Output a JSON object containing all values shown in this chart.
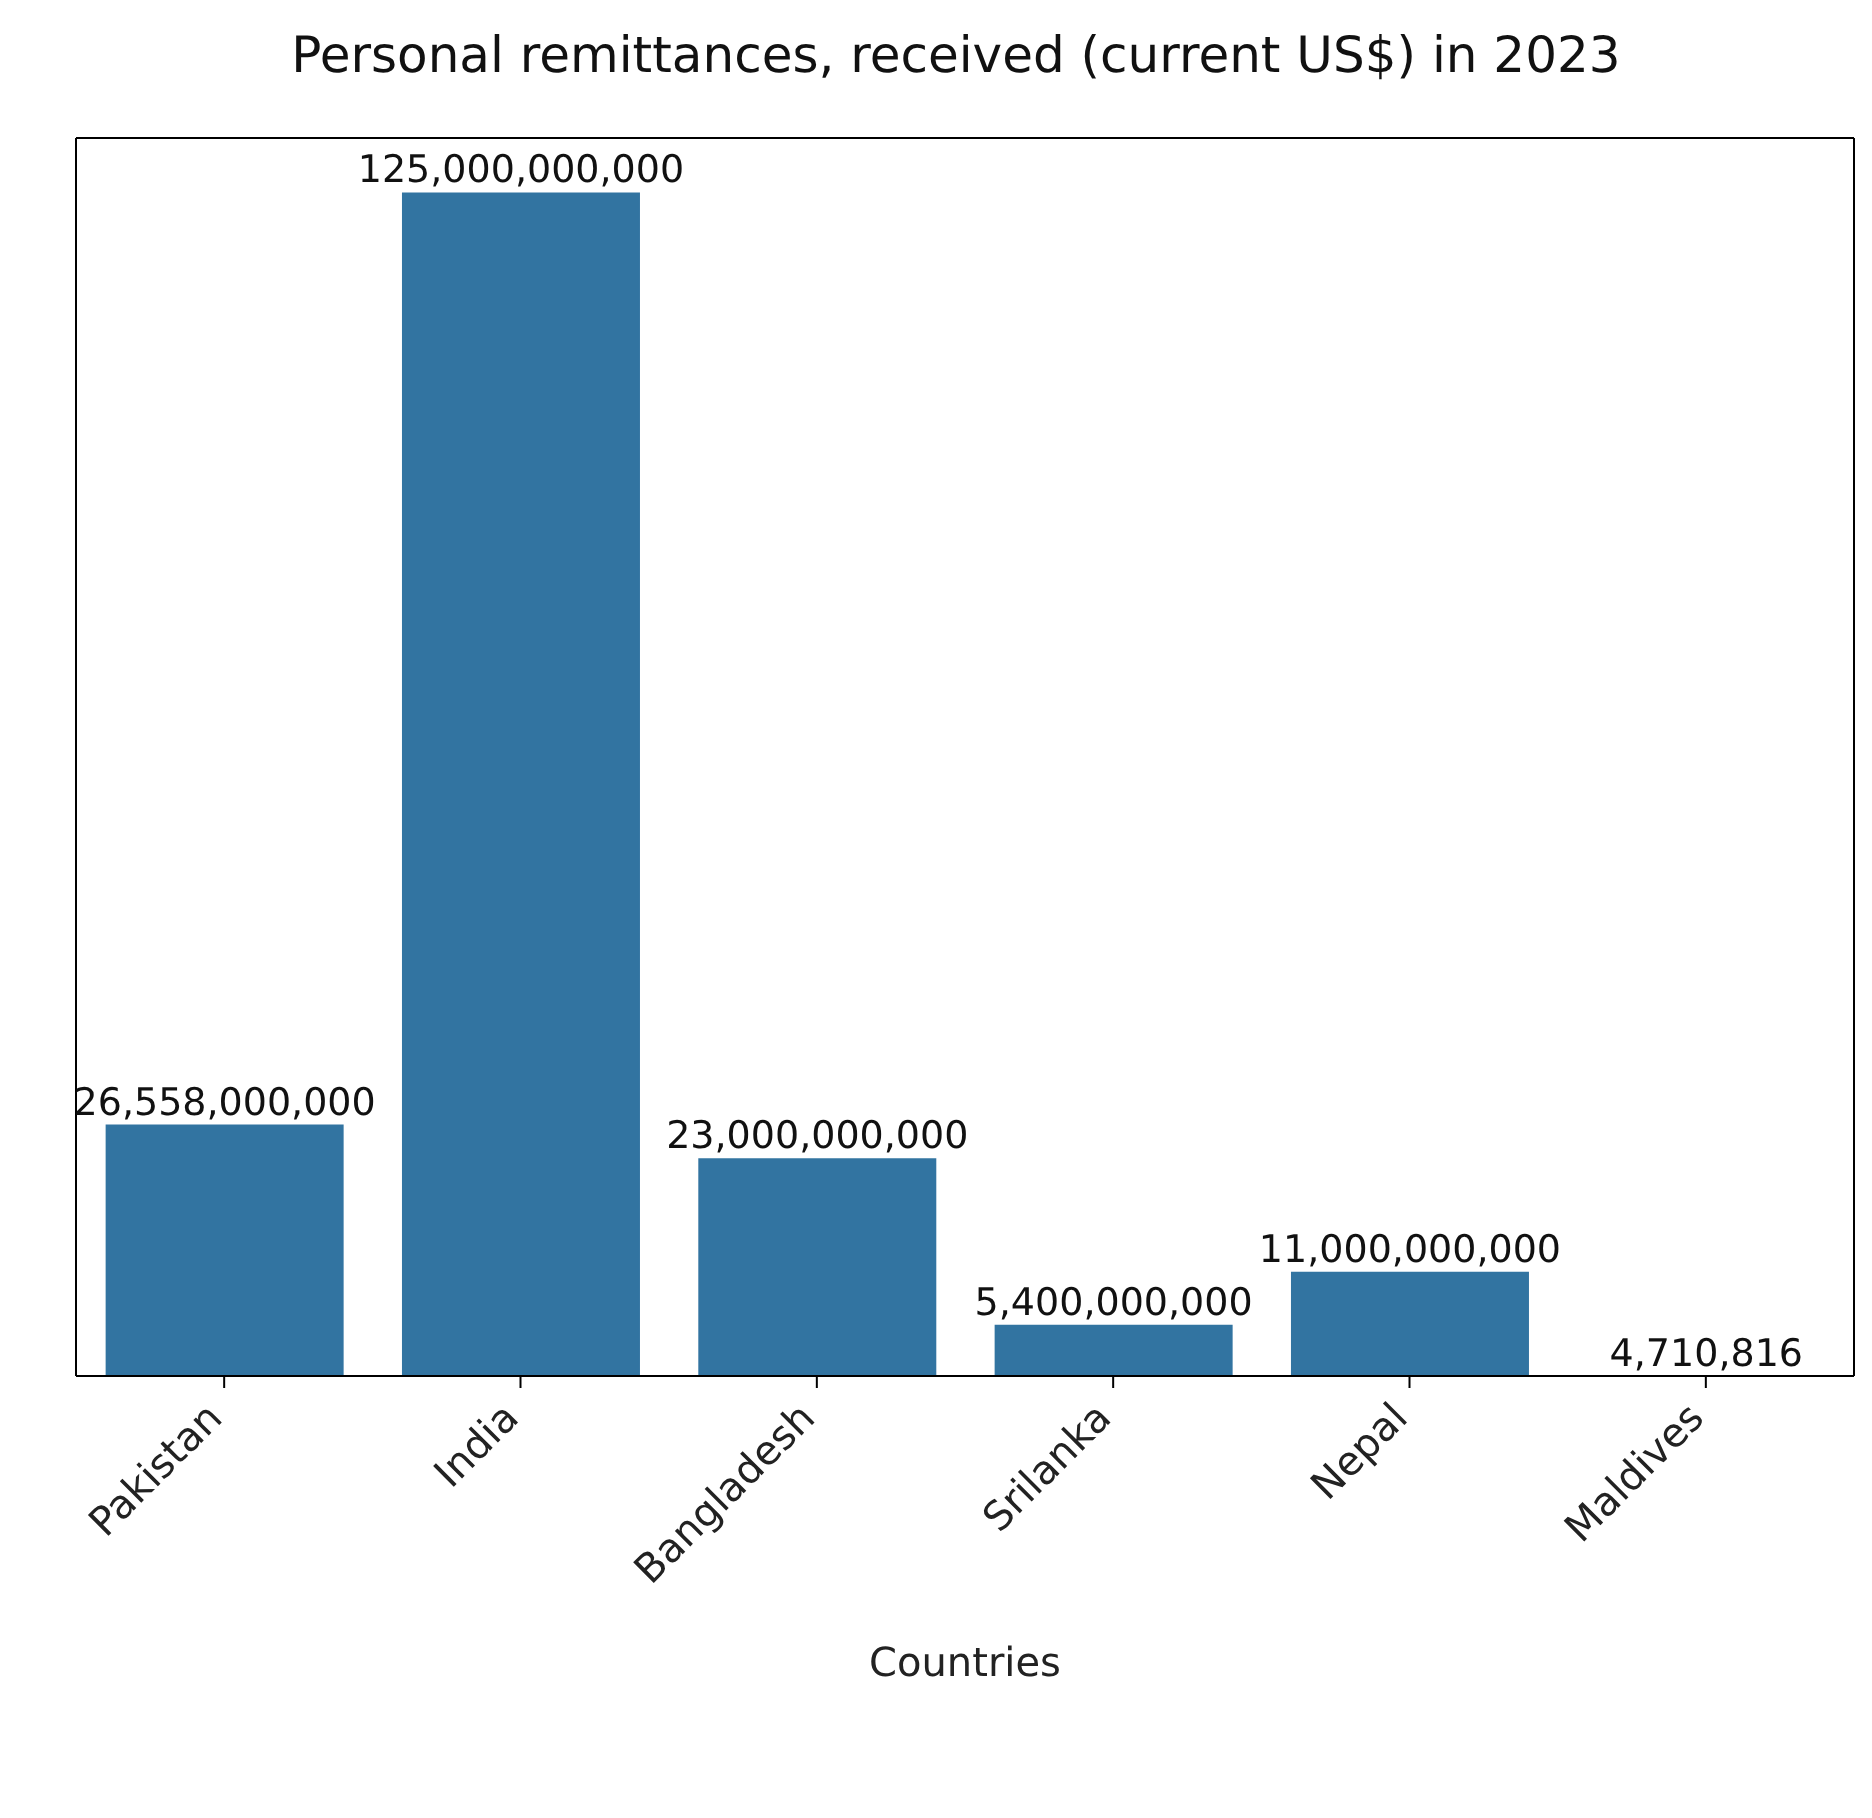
{
  "chart_data": {
    "type": "bar",
    "title": "Personal remittances, received (current US$) in 2023",
    "xlabel": "Countries",
    "categories": [
      "Pakistan",
      "India",
      "Bangladesh",
      "Srilanka",
      "Nepal",
      "Maldives"
    ],
    "values": [
      26558000000,
      125000000000,
      23000000000,
      5400000000,
      11000000000,
      4710816
    ],
    "value_labels": [
      "26,558,000,000",
      "125,000,000,000",
      "23,000,000,000",
      "5,400,000,000",
      "11,000,000,000",
      "4,710,816"
    ],
    "color": "#3274a1",
    "tick_labels": "x",
    "grid": false,
    "legend": false
  }
}
